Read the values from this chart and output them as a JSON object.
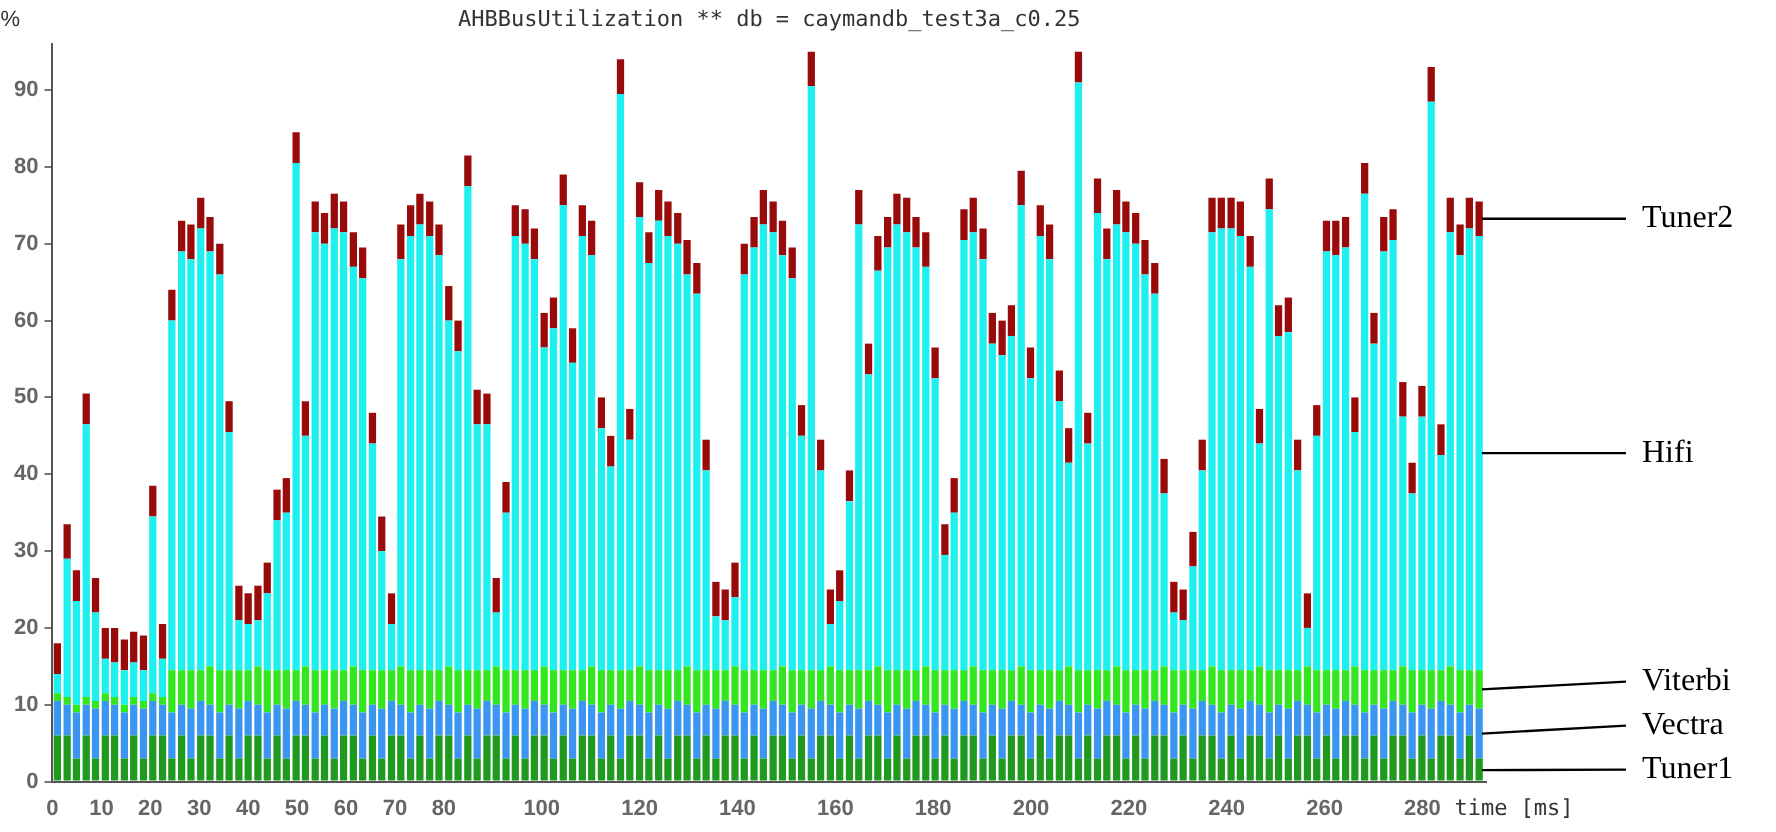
{
  "chart_data": {
    "type": "bar",
    "stacked": true,
    "title": "AHBBusUtilization ** db = caymandb_test3a_c0.25",
    "xlabel": "time [ms]",
    "ylabel": "%",
    "x": [
      1,
      3,
      4.9,
      6.9,
      8.8,
      10.8,
      12.7,
      14.7,
      16.6,
      18.6,
      20.5,
      22.5,
      24.4,
      26.4,
      28.3,
      30.3,
      32.2,
      34.2,
      36.1,
      38.1,
      40,
      42,
      43.9,
      45.9,
      47.8,
      49.8,
      51.7,
      53.7,
      55.6,
      57.6,
      59.5,
      61.5,
      63.4,
      65.4,
      67.3,
      69.3,
      71.2,
      73.2,
      75.1,
      77.1,
      79,
      81,
      82.9,
      84.9,
      86.8,
      88.8,
      90.7,
      92.7,
      94.6,
      96.6,
      98.5,
      100.5,
      102.4,
      104.4,
      106.3,
      108.3,
      110.2,
      112.2,
      114.1,
      116.1,
      118,
      120,
      121.9,
      123.9,
      125.8,
      127.8,
      129.7,
      131.7,
      133.6,
      135.6,
      137.5,
      139.5,
      141.4,
      143.4,
      145.3,
      147.3,
      149.2,
      151.2,
      153.1,
      155.1,
      157,
      159,
      160.9,
      162.9,
      164.8,
      166.8,
      168.7,
      170.7,
      172.6,
      174.6,
      176.5,
      178.5,
      180.4,
      182.4,
      184.3,
      186.3,
      188.2,
      190.2,
      192.1,
      194.1,
      196,
      198,
      199.9,
      201.9,
      203.8,
      205.8,
      207.7,
      209.7,
      211.6,
      213.6,
      215.5,
      217.5,
      219.4,
      221.4,
      223.3,
      225.3,
      227.2,
      229.2,
      231.1,
      233.1,
      235,
      237,
      238.9,
      240.9,
      242.8,
      244.8,
      246.7,
      248.7,
      250.6,
      252.6,
      254.5,
      256.5,
      258.4,
      260.4,
      262.3,
      264.3,
      266.2,
      268.2,
      270.1,
      272.1,
      274,
      276,
      277.9,
      279.9,
      281.8,
      283.8,
      285.7,
      287.7,
      289.6,
      291.6
    ],
    "xlim": [
      0,
      293
    ],
    "xticks": [
      0,
      10,
      20,
      30,
      40,
      50,
      60,
      70,
      80,
      100,
      120,
      140,
      160,
      180,
      200,
      220,
      240,
      260,
      280
    ],
    "ylim": [
      0,
      96
    ],
    "yticks": [
      0,
      10,
      20,
      30,
      40,
      50,
      60,
      70,
      80,
      90
    ],
    "series": [
      {
        "name": "Tuner1",
        "color": "#1f9a1f",
        "values": [
          6,
          6,
          3,
          6,
          3,
          6,
          6,
          3,
          6,
          3,
          6,
          6,
          3,
          6,
          3,
          6,
          6,
          3,
          6,
          3,
          6,
          6,
          3,
          6,
          3,
          6,
          6,
          3,
          6,
          3,
          6,
          6,
          3,
          6,
          3,
          6,
          6,
          3,
          6,
          3,
          6,
          6,
          3,
          6,
          3,
          6,
          6,
          3,
          6,
          3,
          6,
          6,
          3,
          6,
          3,
          6,
          6,
          3,
          6,
          3,
          6,
          6,
          3,
          6,
          3,
          6,
          6,
          3,
          6,
          3,
          6,
          6,
          3,
          6,
          3,
          6,
          6,
          3,
          6,
          3,
          6,
          6,
          3,
          6,
          3,
          6,
          6,
          3,
          6,
          3,
          6,
          6,
          3,
          6,
          3,
          6,
          6,
          3,
          6,
          3,
          6,
          6,
          3,
          6,
          3,
          6,
          6,
          3,
          6,
          3,
          6,
          6,
          3,
          6,
          3,
          6,
          6,
          3,
          6,
          3,
          6,
          6,
          3,
          6,
          3,
          6,
          6,
          3,
          6,
          3,
          6,
          6,
          3,
          6,
          3,
          6,
          6,
          3,
          6,
          3,
          6,
          6,
          3,
          6,
          3,
          6,
          6,
          3,
          6,
          3
        ]
      },
      {
        "name": "Vectra",
        "color": "#3a96f0",
        "values": [
          4.5,
          4,
          6,
          4,
          6.5,
          4.5,
          4,
          6,
          4,
          6.5,
          4.5,
          4,
          6,
          4,
          6.5,
          4.5,
          4,
          6,
          4,
          6.5,
          4.5,
          4,
          6,
          4,
          6.5,
          4.5,
          4,
          6,
          4,
          6.5,
          4.5,
          4,
          6,
          4,
          6.5,
          4.5,
          4,
          6,
          4,
          6.5,
          4.5,
          4,
          6,
          4,
          6.5,
          4.5,
          4,
          6,
          4,
          6.5,
          4.5,
          4,
          6,
          4,
          6.5,
          4.5,
          4,
          6,
          4,
          6.5,
          4.5,
          4,
          6,
          4,
          6.5,
          4.5,
          4,
          6,
          4,
          6.5,
          4.5,
          4,
          6,
          4,
          6.5,
          4.5,
          4,
          6,
          4,
          6.5,
          4.5,
          4,
          6,
          4,
          6.5,
          4.5,
          4,
          6,
          4,
          6.5,
          4.5,
          4,
          6,
          4,
          6.5,
          4.5,
          4,
          6,
          4,
          6.5,
          4.5,
          4,
          6,
          4,
          6.5,
          4.5,
          4,
          6,
          4,
          6.5,
          4.5,
          4,
          6,
          4,
          6.5,
          4.5,
          4,
          6,
          4,
          6.5,
          4.5,
          4,
          6,
          4,
          6.5,
          4.5,
          4,
          6,
          4,
          6.5,
          4.5,
          4,
          6,
          4,
          6.5,
          4.5,
          4,
          6,
          4,
          6.5,
          4.5,
          4,
          6,
          4,
          6.5,
          4.5,
          4,
          6,
          4,
          6.5
        ]
      },
      {
        "name": "Viterbi",
        "color": "#33e61f",
        "values": [
          1,
          1,
          1,
          1,
          1,
          1,
          1,
          1,
          1,
          1,
          1,
          1,
          5.5,
          4.5,
          5,
          4,
          5,
          5.5,
          4.5,
          5,
          4,
          5,
          5.5,
          4.5,
          5,
          4,
          5,
          5.5,
          4.5,
          5,
          4,
          5,
          5.5,
          4.5,
          5,
          4,
          5,
          5.5,
          4.5,
          5,
          4,
          5,
          5.5,
          4.5,
          5,
          4,
          5,
          5.5,
          4.5,
          5,
          4,
          5,
          5.5,
          4.5,
          5,
          4,
          5,
          5.5,
          4.5,
          5,
          4,
          5,
          5.5,
          4.5,
          5,
          4,
          5,
          5.5,
          4.5,
          5,
          4,
          5,
          5.5,
          4.5,
          5,
          4,
          5,
          5.5,
          4.5,
          5,
          4,
          5,
          5.5,
          4.5,
          5,
          4,
          5,
          5.5,
          4.5,
          5,
          4,
          5,
          5.5,
          4.5,
          5,
          4,
          5,
          5.5,
          4.5,
          5,
          4,
          5,
          5.5,
          4.5,
          5,
          4,
          5,
          5.5,
          4.5,
          5,
          4,
          5,
          5.5,
          4.5,
          5,
          4,
          5,
          5.5,
          4.5,
          5,
          4,
          5,
          5.5,
          4.5,
          5,
          4,
          5,
          5.5,
          4.5,
          5,
          4,
          5,
          5.5,
          4.5,
          5,
          4,
          5,
          5.5,
          4.5,
          5,
          4,
          5,
          5.5,
          4.5,
          5,
          4,
          5,
          5.5,
          4.5,
          5
        ]
      },
      {
        "name": "Hifi",
        "color": "#1ef0f0",
        "values": [
          2.5,
          18,
          13.5,
          35.5,
          11.5,
          4.5,
          4.5,
          4.5,
          4.5,
          4,
          23,
          5,
          45.5,
          54.5,
          53.5,
          57.5,
          54,
          51.5,
          31,
          6.5,
          6,
          6,
          10,
          19.5,
          20.5,
          66,
          30,
          57,
          55.5,
          57.5,
          57,
          52,
          51,
          29.5,
          15.5,
          6,
          53,
          56.5,
          58,
          56.5,
          54,
          45,
          41.5,
          63,
          32,
          32,
          7,
          20.5,
          56.5,
          55.5,
          53.5,
          41.5,
          44.5,
          60.5,
          40,
          56.5,
          53.5,
          31.5,
          26.5,
          75,
          30,
          58.5,
          53,
          58.5,
          56.5,
          55.5,
          51,
          49,
          26,
          7,
          6.5,
          9,
          51.5,
          55,
          58,
          57,
          53.5,
          51,
          30.5,
          76,
          26,
          5.5,
          9,
          22,
          58,
          38.5,
          51.5,
          55,
          58,
          57,
          55,
          52,
          38,
          15,
          20.5,
          56,
          56.5,
          53.5,
          42.5,
          41,
          43.5,
          60,
          38,
          56.5,
          53.5,
          35,
          26.5,
          76.5,
          29.5,
          59.5,
          53.5,
          57.5,
          57,
          55.5,
          51.5,
          49,
          22.5,
          7.5,
          6.5,
          13.5,
          26,
          56.5,
          57.5,
          57.5,
          56.5,
          52.5,
          29,
          60,
          43.5,
          44,
          26,
          5,
          30.5,
          54.5,
          54,
          55,
          30.5,
          62,
          42.5,
          54.5,
          56,
          32.5,
          23,
          33,
          74,
          28,
          56.5,
          54,
          57.5,
          56.5
        ]
      },
      {
        "name": "Tuner2",
        "color": "#990a0a",
        "values": [
          4,
          4.5,
          4,
          4,
          4.5,
          4,
          4.5,
          4,
          4,
          4.5,
          4,
          4.5,
          4,
          4,
          4.5,
          4,
          4.5,
          4,
          4,
          4.5,
          4,
          4.5,
          4,
          4,
          4.5,
          4,
          4.5,
          4,
          4,
          4.5,
          4,
          4.5,
          4,
          4,
          4.5,
          4,
          4.5,
          4,
          4,
          4.5,
          4,
          4.5,
          4,
          4,
          4.5,
          4,
          4.5,
          4,
          4,
          4.5,
          4,
          4.5,
          4,
          4,
          4.5,
          4,
          4.5,
          4,
          4,
          4.5,
          4,
          4.5,
          4,
          4,
          4.5,
          4,
          4.5,
          4,
          4,
          4.5,
          4,
          4.5,
          4,
          4,
          4.5,
          4,
          4.5,
          4,
          4,
          4.5,
          4,
          4.5,
          4,
          4,
          4.5,
          4,
          4.5,
          4,
          4,
          4.5,
          4,
          4.5,
          4,
          4,
          4.5,
          4,
          4.5,
          4,
          4,
          4.5,
          4,
          4.5,
          4,
          4,
          4.5,
          4,
          4.5,
          4,
          4,
          4.5,
          4,
          4.5,
          4,
          4,
          4.5,
          4,
          4.5,
          4,
          4,
          4.5,
          4,
          4.5,
          4,
          4,
          4.5,
          4,
          4.5,
          4,
          4,
          4.5,
          4,
          4.5,
          4,
          4,
          4.5,
          4,
          4.5,
          4,
          4,
          4.5,
          4,
          4.5,
          4,
          4,
          4.5,
          4,
          4.5,
          4,
          4,
          4.5
        ]
      }
    ]
  }
}
